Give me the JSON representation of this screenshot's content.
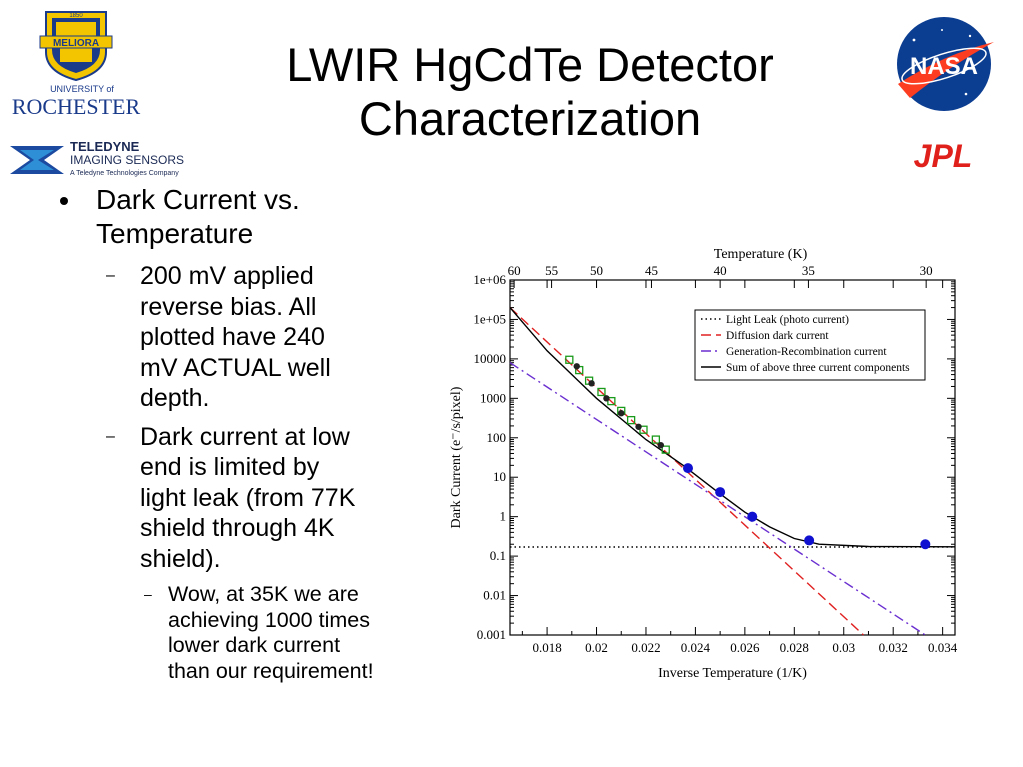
{
  "title_line1": "LWIR HgCdTe Detector",
  "title_line2": "Characterization",
  "logos": {
    "rochester_seal": "MELIORA",
    "rochester_seal_year": "1850",
    "rochester_small": "UNIVERSITY of",
    "rochester_big": "ROCHESTER",
    "teledyne_name": "TELEDYNE",
    "teledyne_sub": "IMAGING SENSORS",
    "teledyne_tag": "A Teledyne Technologies Company",
    "nasa": "NASA",
    "jpl": "JPL"
  },
  "bullet1": {
    "line1": "Dark Current vs.",
    "line2": "Temperature"
  },
  "bullet2": {
    "l1": "200 mV applied",
    "l2": "reverse bias. All",
    "l3": "plotted have 240",
    "l4": "mV ACTUAL well",
    "l5": "depth."
  },
  "bullet3": {
    "l1": "Dark current at low",
    "l2": "end is limited by",
    "l3": "light leak (from 77K",
    "l4": "shield through 4K",
    "l5": "shield)."
  },
  "bullet4": {
    "l1": "Wow, at 35K we are",
    "l2": "achieving 1000 times",
    "l3": "lower dark current",
    "l4": "than our requirement!"
  },
  "chart_data": {
    "type": "line",
    "xlabel": "Inverse Temperature (1/K)",
    "ylabel": "Dark Current (e⁻/s/pixel)",
    "top_axis_label": "Temperature (K)",
    "xlim": [
      0.0165,
      0.0345
    ],
    "ylim_log10": [
      -3,
      6
    ],
    "x_ticks": [
      "0.018",
      "0.02",
      "0.022",
      "0.024",
      "0.026",
      "0.028",
      "0.03",
      "0.032",
      "0.034"
    ],
    "y_ticks": [
      "0.001",
      "0.01",
      "0.1",
      "1",
      "10",
      "100",
      "1000",
      "10000",
      "1e+05",
      "1e+06"
    ],
    "top_ticks": [
      "60",
      "55",
      "50",
      "45",
      "40",
      "35",
      "30"
    ],
    "top_tick_values_K": [
      60,
      55,
      50,
      45,
      40,
      35,
      30
    ],
    "legend_position": "top-right",
    "series": [
      {
        "name": "Light Leak (photo current)",
        "style": "dotted",
        "color": "#000000",
        "points": [
          [
            0.0165,
            0.17
          ],
          [
            0.0345,
            0.17
          ]
        ]
      },
      {
        "name": "Diffusion dark current",
        "style": "dashed",
        "color": "#e02020",
        "points": [
          [
            0.0165,
            200000
          ],
          [
            0.0308,
            0.001
          ]
        ]
      },
      {
        "name": "Generation-Recombination current",
        "style": "dashdot",
        "color": "#6a2fd0",
        "points": [
          [
            0.0165,
            8000
          ],
          [
            0.0333,
            0.001
          ]
        ]
      },
      {
        "name": "Sum of above three current components",
        "style": "solid",
        "color": "#000000",
        "points": [
          [
            0.0165,
            200000
          ],
          [
            0.018,
            16000
          ],
          [
            0.02,
            1000
          ],
          [
            0.022,
            90
          ],
          [
            0.0235,
            20
          ],
          [
            0.025,
            3.8
          ],
          [
            0.026,
            1.3
          ],
          [
            0.027,
            0.55
          ],
          [
            0.028,
            0.28
          ],
          [
            0.029,
            0.2
          ],
          [
            0.031,
            0.175
          ],
          [
            0.0345,
            0.172
          ]
        ]
      }
    ],
    "measured_blue": [
      [
        0.0237,
        17
      ],
      [
        0.025,
        4.2
      ],
      [
        0.0263,
        1.0
      ],
      [
        0.0286,
        0.25
      ],
      [
        0.0333,
        0.2
      ]
    ],
    "measured_green": [
      [
        0.0189,
        9500
      ],
      [
        0.0193,
        5200
      ],
      [
        0.0197,
        2800
      ],
      [
        0.0202,
        1450
      ],
      [
        0.0206,
        850
      ],
      [
        0.021,
        480
      ],
      [
        0.0214,
        280
      ],
      [
        0.0219,
        160
      ],
      [
        0.0224,
        90
      ],
      [
        0.0228,
        50
      ]
    ],
    "measured_dark": [
      [
        0.0192,
        6500
      ],
      [
        0.0198,
        2400
      ],
      [
        0.0204,
        1000
      ],
      [
        0.021,
        420
      ],
      [
        0.0217,
        190
      ],
      [
        0.0226,
        65
      ]
    ]
  }
}
